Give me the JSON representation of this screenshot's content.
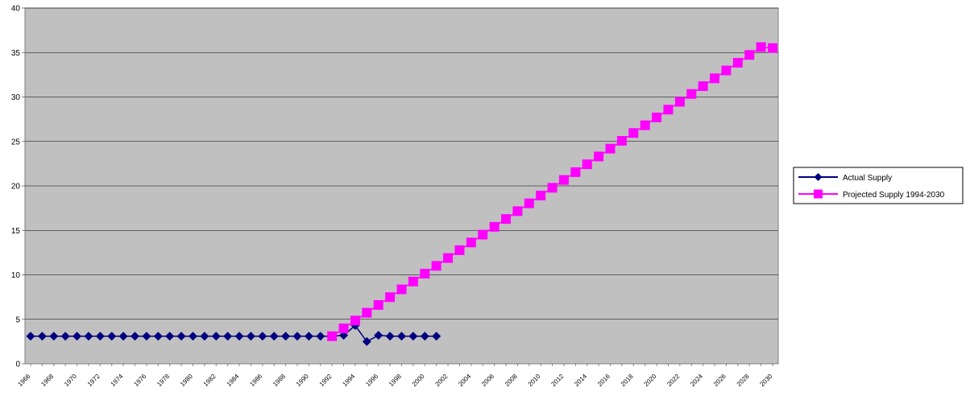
{
  "chart_data": {
    "type": "line",
    "title": "",
    "xlabel": "",
    "ylabel": "",
    "ylim": [
      0,
      40
    ],
    "y_ticks": [
      0,
      5,
      10,
      15,
      20,
      25,
      30,
      35,
      40
    ],
    "grid": true,
    "plot_background": "#c0c0c0",
    "legend_position": "right",
    "x": [
      1966,
      1967,
      1968,
      1969,
      1970,
      1971,
      1972,
      1973,
      1974,
      1975,
      1976,
      1977,
      1978,
      1979,
      1980,
      1981,
      1982,
      1983,
      1984,
      1985,
      1986,
      1987,
      1988,
      1989,
      1990,
      1991,
      1992,
      1993,
      1994,
      1995,
      1996,
      1997,
      1998,
      1999,
      2000,
      2001,
      2002,
      2003,
      2004,
      2005,
      2006,
      2007,
      2008,
      2009,
      2010,
      2011,
      2012,
      2013,
      2014,
      2015,
      2016,
      2017,
      2018,
      2019,
      2020,
      2021,
      2022,
      2023,
      2024,
      2025,
      2026,
      2027,
      2028,
      2029,
      2030
    ],
    "x_tick_labels": [
      "1966",
      "1968",
      "1970",
      "1972",
      "1974",
      "1976",
      "1978",
      "1980",
      "1982",
      "1984",
      "1986",
      "1988",
      "1990",
      "1992",
      "1994",
      "1996",
      "1998",
      "2000",
      "2002",
      "2004",
      "2006",
      "2008",
      "2010",
      "2012",
      "2014",
      "2016",
      "2018",
      "2020",
      "2022",
      "2024",
      "2026",
      "2028",
      "2030"
    ],
    "series": [
      {
        "name": "Actual Supply",
        "color": "#000080",
        "marker": "diamond",
        "x": [
          1966,
          1967,
          1968,
          1969,
          1970,
          1971,
          1972,
          1973,
          1974,
          1975,
          1976,
          1977,
          1978,
          1979,
          1980,
          1981,
          1982,
          1983,
          1984,
          1985,
          1986,
          1987,
          1988,
          1989,
          1990,
          1991,
          1992,
          1993,
          1994,
          1995,
          1996,
          1997,
          1998,
          1999,
          2000,
          2001
        ],
        "values": [
          3.1,
          3.1,
          3.1,
          3.1,
          3.1,
          3.1,
          3.1,
          3.1,
          3.1,
          3.1,
          3.1,
          3.1,
          3.1,
          3.1,
          3.1,
          3.1,
          3.1,
          3.1,
          3.1,
          3.1,
          3.1,
          3.1,
          3.1,
          3.1,
          3.1,
          3.1,
          3.1,
          3.2,
          4.3,
          2.5,
          3.2,
          3.1,
          3.1,
          3.1,
          3.1,
          3.1
        ]
      },
      {
        "name": "Projected Supply 1994-2030",
        "color": "#ff00ff",
        "marker": "square",
        "x": [
          1992,
          1993,
          1994,
          1995,
          1996,
          1997,
          1998,
          1999,
          2000,
          2001,
          2002,
          2003,
          2004,
          2005,
          2006,
          2007,
          2008,
          2009,
          2010,
          2011,
          2012,
          2013,
          2014,
          2015,
          2016,
          2017,
          2018,
          2019,
          2020,
          2021,
          2022,
          2023,
          2024,
          2025,
          2026,
          2027,
          2028,
          2029,
          2030
        ],
        "values": [
          3.1,
          3.98,
          4.86,
          5.74,
          6.61,
          7.49,
          8.37,
          9.25,
          10.13,
          11.01,
          11.89,
          12.77,
          13.64,
          14.52,
          15.4,
          16.28,
          17.16,
          18.04,
          18.92,
          19.79,
          20.67,
          21.55,
          22.43,
          23.31,
          24.19,
          25.07,
          25.95,
          26.82,
          27.7,
          28.58,
          29.46,
          30.34,
          31.22,
          32.1,
          32.98,
          33.85,
          34.73,
          35.61,
          35.5
        ]
      }
    ]
  }
}
